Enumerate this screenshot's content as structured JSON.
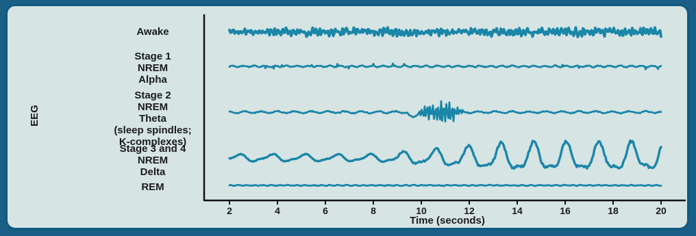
{
  "chart_data": {
    "type": "line",
    "ylabel": "EEG",
    "xlabel": "Time (seconds)",
    "xlim": [
      2,
      20
    ],
    "x_ticks": [
      2,
      4,
      6,
      8,
      10,
      12,
      14,
      16,
      18,
      20
    ],
    "grid": false,
    "legend": "none",
    "series": [
      {
        "name": "Awake",
        "label_lines": [
          "Awake"
        ],
        "pattern": "high-frequency, low-amplitude",
        "amplitude": 0.45
      },
      {
        "name": "Stage 1 NREM Alpha",
        "label_lines": [
          "Stage 1",
          "NREM",
          "Alpha"
        ],
        "pattern": "alpha waves",
        "amplitude": 0.25
      },
      {
        "name": "Stage 2 NREM Theta (sleep spindles; K-complexes)",
        "label_lines": [
          "Stage 2",
          "NREM",
          "Theta",
          "(sleep spindles;",
          "K-complexes)"
        ],
        "pattern": "theta with spindle burst near 10–12 s",
        "amplitude": 0.3,
        "spindle_range": [
          9.8,
          11.8
        ]
      },
      {
        "name": "Stage 3 and 4 NREM Delta",
        "label_lines": [
          "Stage 3 and 4",
          "NREM",
          "Delta"
        ],
        "pattern": "high-amplitude, low-frequency delta",
        "amplitude": 1.0
      },
      {
        "name": "REM",
        "label_lines": [
          "REM"
        ],
        "pattern": "low-amplitude, mixed frequency",
        "amplitude": 0.2
      }
    ]
  },
  "colors": {
    "trace": "#1a86a8",
    "panel": "#d6e4e3",
    "frame": "#0f5a80"
  }
}
